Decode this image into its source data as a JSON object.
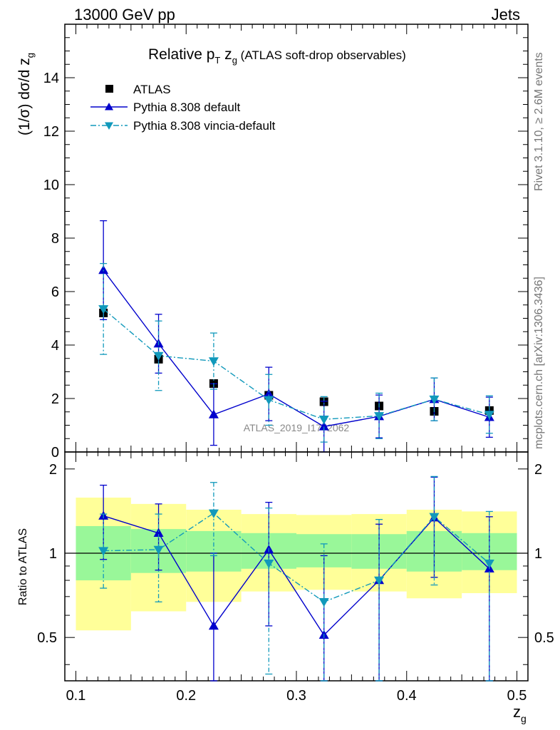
{
  "header": {
    "left": "13000 GeV pp",
    "right": "Jets"
  },
  "side_labels": {
    "rivet": "Rivet 3.1.10, ≥ 2.6M events",
    "mcplots": "mcplots.cern.ch [arXiv:1306.3436]"
  },
  "chart_data": [
    {
      "type": "scatter",
      "panel": "main",
      "title_main": "Relative p",
      "title_sub_T": "T",
      "title_mid": " z",
      "title_sub_g": "g",
      "title_suffix": "(ATLAS soft-drop observables)",
      "ylabel": "(1/σ) dσ/d z",
      "ylabel_sub": "g",
      "xlabel": "z",
      "xlabel_sub": "g",
      "xlim": [
        0.09,
        0.51
      ],
      "ylim": [
        0,
        16
      ],
      "yticks": [
        0,
        2,
        4,
        6,
        8,
        10,
        12,
        14
      ],
      "ytick_labels": [
        "0",
        "2",
        "4",
        "6",
        "8",
        "10",
        "12",
        "14"
      ],
      "watermark": "ATLAS_2019_I1772062",
      "legend": [
        {
          "name": "ATLAS",
          "marker": "square",
          "color": "#000000"
        },
        {
          "name": "Pythia 8.308 default",
          "marker": "triangle-up",
          "color": "#0000cc"
        },
        {
          "name": "Pythia 8.308 vincia-default",
          "marker": "triangle-down",
          "color": "#1199bb"
        }
      ],
      "series": [
        {
          "name": "ATLAS",
          "x": [
            0.125,
            0.175,
            0.225,
            0.275,
            0.325,
            0.375,
            0.425,
            0.475
          ],
          "y": [
            5.2,
            3.47,
            2.56,
            2.12,
            1.88,
            1.72,
            1.52,
            1.55
          ],
          "err": [
            0.1,
            0.1,
            0.1,
            0.1,
            0.1,
            0.1,
            0.1,
            0.1
          ]
        },
        {
          "name": "Pythia 8.308 default",
          "x": [
            0.125,
            0.175,
            0.225,
            0.275,
            0.325,
            0.375,
            0.425,
            0.475
          ],
          "y": [
            6.8,
            4.05,
            1.4,
            2.17,
            0.95,
            1.33,
            1.97,
            1.3
          ],
          "err": [
            1.85,
            1.1,
            1.15,
            1.0,
            0.95,
            0.8,
            0.8,
            0.75
          ]
        },
        {
          "name": "Pythia 8.308 vincia-default",
          "x": [
            0.125,
            0.175,
            0.225,
            0.275,
            0.325,
            0.375,
            0.425,
            0.475
          ],
          "y": [
            5.35,
            3.6,
            3.4,
            1.95,
            1.22,
            1.35,
            1.97,
            1.4
          ],
          "err": [
            1.7,
            1.3,
            1.05,
            0.95,
            0.85,
            0.85,
            0.8,
            0.7
          ]
        }
      ]
    },
    {
      "type": "scatter",
      "panel": "ratio",
      "ylabel": "Ratio to ATLAS",
      "xlim": [
        0.09,
        0.51
      ],
      "ylim": [
        0.35,
        2.3
      ],
      "yticks": [
        0.5,
        1,
        2
      ],
      "ytick_labels": [
        "0.5",
        "1",
        "2"
      ],
      "xticks": [
        0.1,
        0.2,
        0.3,
        0.4,
        0.5
      ],
      "xtick_labels": [
        "0.1",
        "0.2",
        "0.3",
        "0.4",
        "0.5"
      ],
      "bands": [
        {
          "xlo": 0.1,
          "xhi": 0.15,
          "inner": [
            0.8,
            1.25
          ],
          "outer": [
            0.53,
            1.58
          ]
        },
        {
          "xlo": 0.15,
          "xhi": 0.2,
          "inner": [
            0.85,
            1.22
          ],
          "outer": [
            0.62,
            1.5
          ]
        },
        {
          "xlo": 0.2,
          "xhi": 0.25,
          "inner": [
            0.86,
            1.2
          ],
          "outer": [
            0.67,
            1.43
          ]
        },
        {
          "xlo": 0.25,
          "xhi": 0.3,
          "inner": [
            0.88,
            1.18
          ],
          "outer": [
            0.73,
            1.38
          ]
        },
        {
          "xlo": 0.3,
          "xhi": 0.35,
          "inner": [
            0.89,
            1.17
          ],
          "outer": [
            0.74,
            1.37
          ]
        },
        {
          "xlo": 0.35,
          "xhi": 0.4,
          "inner": [
            0.88,
            1.17
          ],
          "outer": [
            0.73,
            1.38
          ]
        },
        {
          "xlo": 0.4,
          "xhi": 0.45,
          "inner": [
            0.86,
            1.2
          ],
          "outer": [
            0.69,
            1.43
          ]
        },
        {
          "xlo": 0.45,
          "xhi": 0.5,
          "inner": [
            0.87,
            1.18
          ],
          "outer": [
            0.72,
            1.41
          ]
        }
      ],
      "series": [
        {
          "name": "Pythia 8.308 default",
          "x": [
            0.125,
            0.175,
            0.225,
            0.275,
            0.325,
            0.375,
            0.425,
            0.475
          ],
          "y": [
            1.36,
            1.18,
            0.55,
            1.03,
            0.51,
            0.8,
            1.34,
            0.88
          ],
          "lo": [
            0.95,
            0.87,
            0.33,
            0.55,
            0.33,
            0.33,
            0.82,
            0.33
          ],
          "hi": [
            1.75,
            1.5,
            1.0,
            1.52,
            0.98,
            1.27,
            1.87,
            1.35
          ]
        },
        {
          "name": "Pythia 8.308 vincia-default",
          "x": [
            0.125,
            0.175,
            0.225,
            0.275,
            0.325,
            0.375,
            0.425,
            0.475
          ],
          "y": [
            1.02,
            1.03,
            1.39,
            0.92,
            0.67,
            0.8,
            1.35,
            0.92
          ],
          "lo": [
            0.75,
            0.67,
            0.98,
            0.37,
            0.33,
            0.33,
            0.77,
            0.33
          ],
          "hi": [
            1.38,
            1.38,
            1.79,
            1.45,
            1.08,
            1.32,
            1.88,
            1.41
          ]
        }
      ]
    }
  ],
  "colors": {
    "atlas": "#000000",
    "default": "#0000cc",
    "vincia": "#1199bb",
    "band_inner": "#99f799",
    "band_outer": "#ffff99",
    "side_text": "#777777",
    "watermark": "#888888"
  }
}
